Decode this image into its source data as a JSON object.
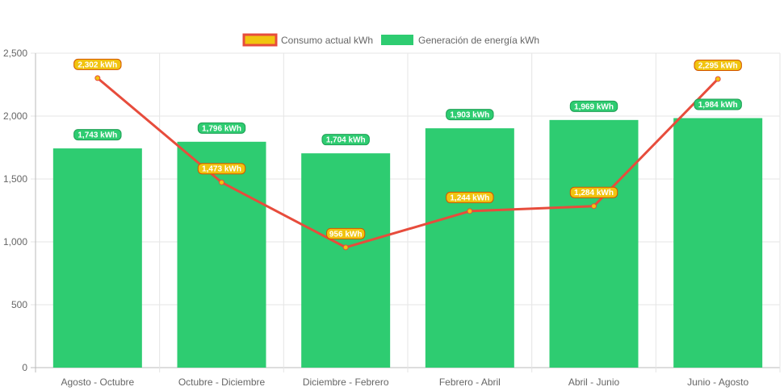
{
  "chart_data": {
    "type": "bar",
    "categories": [
      "Agosto - Octubre",
      "Octubre - Diciembre",
      "Diciembre - Febrero",
      "Febrero - Abril",
      "Abril - Junio",
      "Junio - Agosto"
    ],
    "series": [
      {
        "name": "Consumo actual kWh",
        "type": "line",
        "color": "#e74c3c",
        "fill": "#f1c40f",
        "values": [
          2302,
          1473,
          956,
          1244,
          1284,
          2295
        ],
        "labels": [
          "2,302 kWh",
          "1,473 kWh",
          "956 kWh",
          "1,244 kWh",
          "1,284 kWh",
          "2,295 kWh"
        ]
      },
      {
        "name": "Generación de energía kWh",
        "type": "bar",
        "color": "#2ecc71",
        "values": [
          1743,
          1796,
          1704,
          1903,
          1969,
          1984
        ],
        "labels": [
          "1,743 kWh",
          "1,796 kWh",
          "1,704 kWh",
          "1,903 kWh",
          "1,969 kWh",
          "1,984 kWh"
        ]
      }
    ],
    "yticks": [
      "0",
      "500",
      "1,000",
      "1,500",
      "2,000",
      "2,500"
    ],
    "ylim": [
      0,
      2500
    ],
    "grid": true,
    "legend": "top-center",
    "title": "",
    "xlabel": "",
    "ylabel": ""
  }
}
